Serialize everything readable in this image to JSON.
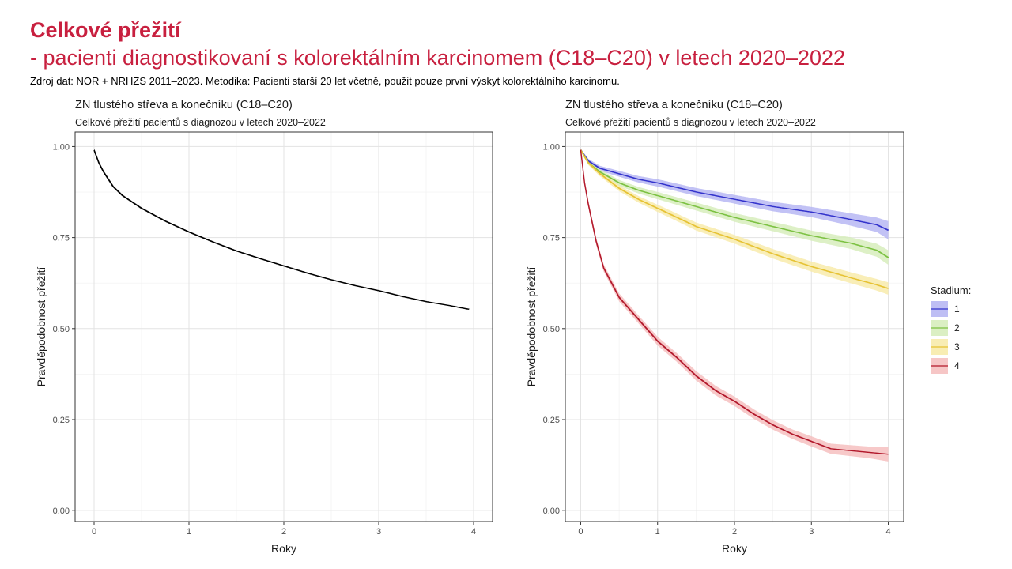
{
  "slide": {
    "title": "Celkové přežití",
    "subtitle": "- pacienti diagnostikovaní s kolorektálním karcinomem (C18–C20) v letech 2020–2022",
    "source": "Zdroj dat: NOR + NRHZS 2011–2023. Metodika: Pacienti starší 20 let včetně, použit pouze první výskyt kolorektálního karcinomu."
  },
  "chart_data": [
    {
      "type": "line",
      "title": "ZN tlustého střeva a konečníku (C18–C20)",
      "subtitle": "Celkové přežití pacientů s diagnozou v letech 2020–2022",
      "xlabel": "Roky",
      "ylabel": "Pravděpodobnost přežití",
      "xlim": [
        -0.2,
        4.2
      ],
      "ylim": [
        -0.03,
        1.04
      ],
      "x_ticks": [
        "0",
        "1",
        "2",
        "3",
        "4"
      ],
      "y_ticks": [
        "0.00",
        "0.25",
        "0.50",
        "0.75",
        "1.00"
      ],
      "grid": true,
      "series": [
        {
          "color": "#000000",
          "x": [
            0,
            0.05,
            0.1,
            0.2,
            0.3,
            0.5,
            0.75,
            1.0,
            1.25,
            1.5,
            1.75,
            2.0,
            2.25,
            2.5,
            2.75,
            3.0,
            3.25,
            3.5,
            3.75,
            3.95
          ],
          "y": [
            0.99,
            0.955,
            0.93,
            0.89,
            0.865,
            0.83,
            0.795,
            0.765,
            0.738,
            0.713,
            0.692,
            0.672,
            0.652,
            0.634,
            0.618,
            0.604,
            0.588,
            0.574,
            0.563,
            0.553
          ]
        }
      ]
    },
    {
      "type": "line",
      "title": "ZN tlustého střeva a konečníku (C18–C20)",
      "subtitle": "Celkové přežití pacientů s diagnozou v letech 2020–2022",
      "xlabel": "Roky",
      "ylabel": "Pravděpodobnost přežití",
      "xlim": [
        -0.2,
        4.2
      ],
      "ylim": [
        -0.03,
        1.04
      ],
      "x_ticks": [
        "0",
        "1",
        "2",
        "3",
        "4"
      ],
      "y_ticks": [
        "0.00",
        "0.25",
        "0.50",
        "0.75",
        "1.00"
      ],
      "grid": true,
      "legend": {
        "title": "Stadium:",
        "position": "right"
      },
      "series": [
        {
          "name": "1",
          "color": "#3333cc",
          "band_color": "#b3b3f2",
          "x": [
            0,
            0.1,
            0.25,
            0.5,
            0.75,
            1.0,
            1.5,
            2.0,
            2.5,
            3.0,
            3.5,
            3.85,
            4.0
          ],
          "y": [
            0.99,
            0.96,
            0.94,
            0.925,
            0.91,
            0.9,
            0.875,
            0.855,
            0.835,
            0.82,
            0.8,
            0.785,
            0.77
          ],
          "band_halfwidth": [
            0.004,
            0.006,
            0.007,
            0.008,
            0.009,
            0.01,
            0.011,
            0.012,
            0.013,
            0.014,
            0.017,
            0.02,
            0.025
          ]
        },
        {
          "name": "2",
          "color": "#7cc142",
          "band_color": "#d5ecb8",
          "x": [
            0,
            0.1,
            0.25,
            0.5,
            0.75,
            1.0,
            1.5,
            2.0,
            2.5,
            3.0,
            3.5,
            3.85,
            4.0
          ],
          "y": [
            0.99,
            0.955,
            0.93,
            0.9,
            0.88,
            0.865,
            0.835,
            0.805,
            0.78,
            0.755,
            0.735,
            0.715,
            0.695
          ],
          "band_halfwidth": [
            0.004,
            0.006,
            0.007,
            0.008,
            0.009,
            0.01,
            0.011,
            0.012,
            0.013,
            0.014,
            0.016,
            0.018,
            0.02
          ]
        },
        {
          "name": "3",
          "color": "#e6c233",
          "band_color": "#f7eaa6",
          "x": [
            0,
            0.1,
            0.25,
            0.5,
            0.75,
            1.0,
            1.5,
            2.0,
            2.5,
            3.0,
            3.5,
            3.85,
            4.0
          ],
          "y": [
            0.99,
            0.955,
            0.925,
            0.885,
            0.855,
            0.83,
            0.78,
            0.745,
            0.705,
            0.67,
            0.64,
            0.62,
            0.61
          ],
          "band_halfwidth": [
            0.004,
            0.006,
            0.007,
            0.008,
            0.009,
            0.01,
            0.011,
            0.012,
            0.013,
            0.014,
            0.015,
            0.016,
            0.017
          ]
        },
        {
          "name": "4",
          "color": "#b2182b",
          "band_color": "#f5bcbc",
          "x": [
            0,
            0.05,
            0.1,
            0.2,
            0.3,
            0.5,
            0.75,
            1.0,
            1.25,
            1.5,
            1.75,
            2.0,
            2.25,
            2.5,
            2.75,
            3.0,
            3.25,
            3.5,
            3.75,
            4.0
          ],
          "y": [
            0.99,
            0.9,
            0.84,
            0.74,
            0.665,
            0.585,
            0.525,
            0.465,
            0.42,
            0.37,
            0.33,
            0.3,
            0.265,
            0.235,
            0.21,
            0.19,
            0.17,
            0.165,
            0.16,
            0.155
          ],
          "band_halfwidth": [
            0.004,
            0.008,
            0.01,
            0.01,
            0.01,
            0.011,
            0.011,
            0.012,
            0.012,
            0.013,
            0.013,
            0.013,
            0.013,
            0.013,
            0.013,
            0.014,
            0.014,
            0.015,
            0.016,
            0.02
          ]
        }
      ]
    }
  ]
}
